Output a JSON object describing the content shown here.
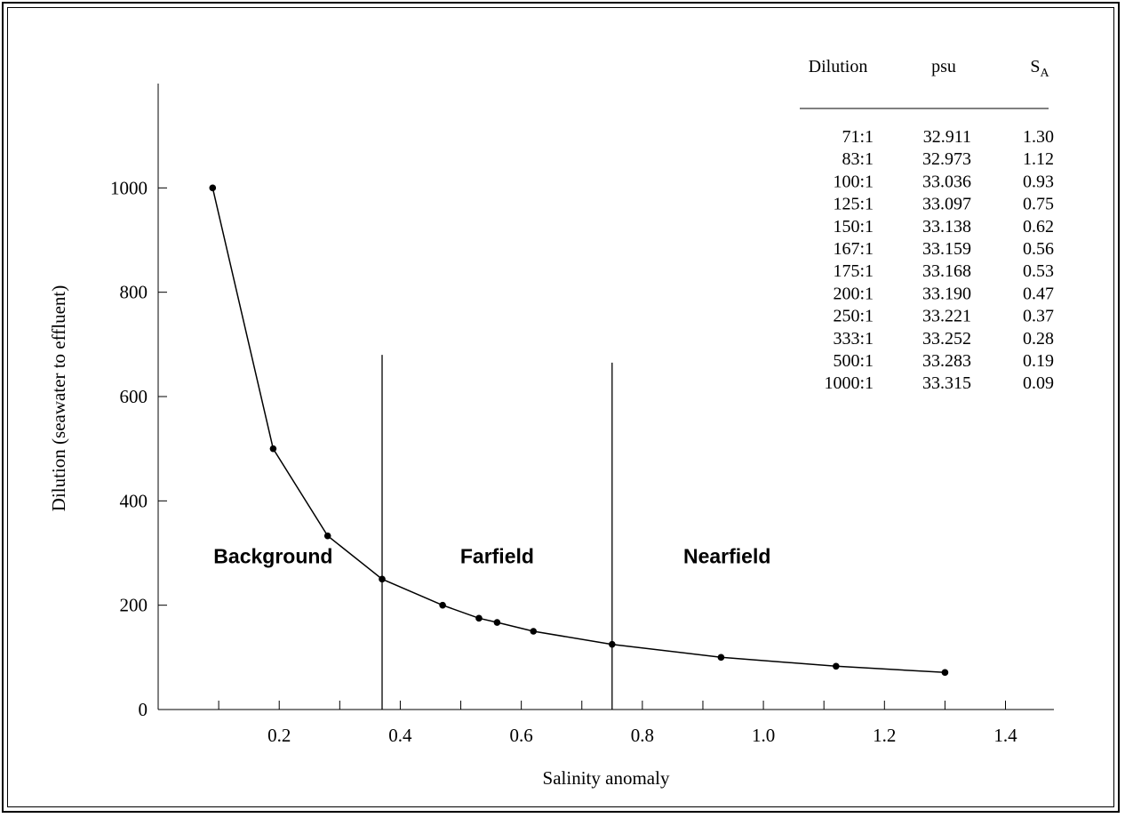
{
  "chart_data": {
    "type": "line",
    "xlabel": "Salinity anomaly",
    "ylabel": "Dilution (seawater to effluent)",
    "xlim": [
      0.0,
      1.48
    ],
    "ylim": [
      0,
      1200
    ],
    "xticks": [
      0.2,
      0.4,
      0.6,
      0.8,
      1.0,
      1.2,
      1.4
    ],
    "xtick_labels": [
      "0.2",
      "0.4",
      "0.6",
      "0.8",
      "1.0",
      "1.2",
      "1.4"
    ],
    "yticks": [
      0,
      200,
      400,
      600,
      800,
      1000
    ],
    "ytick_labels": [
      "0",
      "200",
      "400",
      "600",
      "800",
      "1000"
    ],
    "series": [
      {
        "x": [
          0.09,
          0.19,
          0.28,
          0.37,
          0.47,
          0.53,
          0.56,
          0.62,
          0.75,
          0.93,
          1.12,
          1.3
        ],
        "y": [
          1000,
          500,
          333,
          250,
          200,
          175,
          167,
          150,
          125,
          100,
          83,
          71
        ]
      }
    ],
    "vlines": [
      {
        "x": 0.37,
        "ymax": 680
      },
      {
        "x": 0.75,
        "ymax": 665
      }
    ],
    "regions": [
      {
        "label": "Background",
        "x": 0.19,
        "y": 280
      },
      {
        "label": "Farfield",
        "x": 0.56,
        "y": 280
      },
      {
        "label": "Nearfield",
        "x": 0.94,
        "y": 280
      }
    ],
    "grid": false
  },
  "table": {
    "headers": [
      "Dilution",
      "psu",
      "S",
      "A"
    ],
    "rows": [
      [
        "71:1",
        "32.911",
        "1.30"
      ],
      [
        "83:1",
        "32.973",
        "1.12"
      ],
      [
        "100:1",
        "33.036",
        "0.93"
      ],
      [
        "125:1",
        "33.097",
        "0.75"
      ],
      [
        "150:1",
        "33.138",
        "0.62"
      ],
      [
        "167:1",
        "33.159",
        "0.56"
      ],
      [
        "175:1",
        "33.168",
        "0.53"
      ],
      [
        "200:1",
        "33.190",
        "0.47"
      ],
      [
        "250:1",
        "33.221",
        "0.37"
      ],
      [
        "333:1",
        "33.252",
        "0.28"
      ],
      [
        "500:1",
        "33.283",
        "0.19"
      ],
      [
        "1000:1",
        "33.315",
        "0.09"
      ]
    ]
  }
}
